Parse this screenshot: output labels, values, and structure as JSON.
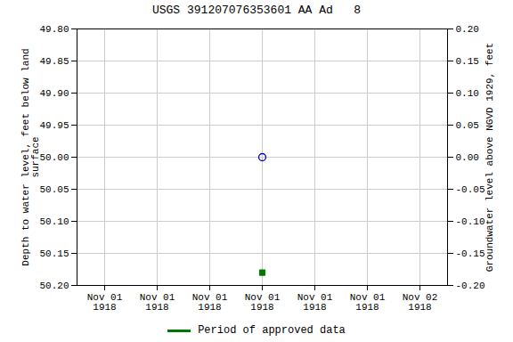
{
  "chart_data": {
    "type": "scatter",
    "title": "USGS 391207076353601 AA Ad   8",
    "y_label": "Depth to water level, feet below land\nsurface",
    "y2_label": "Groundwater level above NGVD 1929, feet",
    "categories": [
      "Nov 01\n1918",
      "Nov 01\n1918",
      "Nov 01\n1918",
      "Nov 01\n1918",
      "Nov 01\n1918",
      "Nov 01\n1918",
      "Nov 02\n1918"
    ],
    "ylim": [
      50.2,
      49.8
    ],
    "yticks": [
      {
        "value": 49.8,
        "label": "49.80"
      },
      {
        "value": 49.85,
        "label": "49.85"
      },
      {
        "value": 49.9,
        "label": "49.90"
      },
      {
        "value": 49.95,
        "label": "49.95"
      },
      {
        "value": 50.0,
        "label": "50.00"
      },
      {
        "value": 50.05,
        "label": "50.05"
      },
      {
        "value": 50.1,
        "label": "50.10"
      },
      {
        "value": 50.15,
        "label": "50.15"
      },
      {
        "value": 50.2,
        "label": "50.20"
      }
    ],
    "y2lim": [
      -0.2,
      0.2
    ],
    "y2ticks": [
      {
        "value": 0.2,
        "label": "0.20"
      },
      {
        "value": 0.15,
        "label": "0.15"
      },
      {
        "value": 0.1,
        "label": "0.10"
      },
      {
        "value": 0.05,
        "label": "0.05"
      },
      {
        "value": 0.0,
        "label": "0.00"
      },
      {
        "value": -0.05,
        "label": "-0.05"
      },
      {
        "value": -0.1,
        "label": "-0.10"
      },
      {
        "value": -0.15,
        "label": "-0.15"
      },
      {
        "value": -0.2,
        "label": "-0.20"
      }
    ],
    "series": [
      {
        "color": "#0000cc",
        "marker": "circle_open",
        "values": [
          null,
          null,
          null,
          50.0,
          null,
          null,
          null
        ]
      },
      {
        "name": "Period of approved data",
        "color": "#007700",
        "marker": "square",
        "values": [
          null,
          null,
          null,
          50.18,
          null,
          null,
          null
        ]
      }
    ],
    "grid": true,
    "legend": "bottom"
  }
}
